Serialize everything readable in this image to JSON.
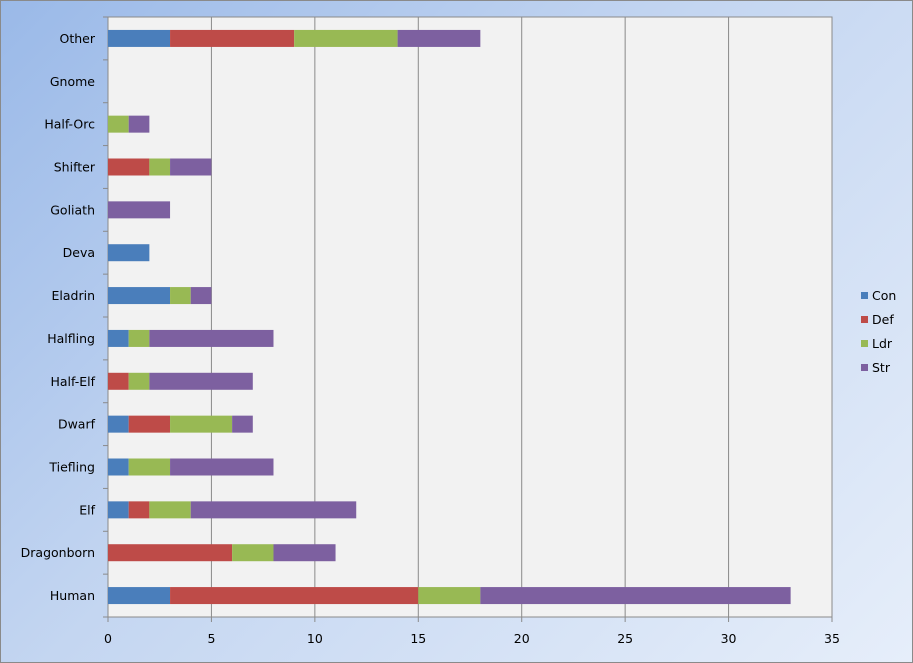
{
  "chart_data": {
    "type": "bar",
    "orientation": "horizontal",
    "stacked": true,
    "title": "",
    "xlabel": "",
    "ylabel": "",
    "xlim": [
      0,
      35
    ],
    "x_ticks": [
      0,
      5,
      10,
      15,
      20,
      25,
      30,
      35
    ],
    "grid": true,
    "legend_position": "right",
    "categories": [
      "Human",
      "Dragonborn",
      "Elf",
      "Tiefling",
      "Dwarf",
      "Half-Elf",
      "Halfling",
      "Eladrin",
      "Deva",
      "Goliath",
      "Shifter",
      "Half-Orc",
      "Gnome",
      "Other"
    ],
    "series": [
      {
        "name": "Con",
        "color": "#4a7ebb",
        "values": [
          3,
          0,
          1,
          1,
          1,
          0,
          1,
          3,
          2,
          0,
          0,
          0,
          0,
          3
        ]
      },
      {
        "name": "Def",
        "color": "#be4b48",
        "values": [
          12,
          6,
          1,
          0,
          2,
          1,
          0,
          0,
          0,
          0,
          2,
          0,
          0,
          6
        ]
      },
      {
        "name": "Ldr",
        "color": "#98b954",
        "values": [
          3,
          2,
          2,
          2,
          3,
          1,
          1,
          1,
          0,
          0,
          1,
          1,
          0,
          5
        ]
      },
      {
        "name": "Str",
        "color": "#7d60a0",
        "values": [
          15,
          3,
          8,
          5,
          1,
          5,
          6,
          1,
          0,
          3,
          2,
          1,
          0,
          4
        ]
      }
    ]
  }
}
